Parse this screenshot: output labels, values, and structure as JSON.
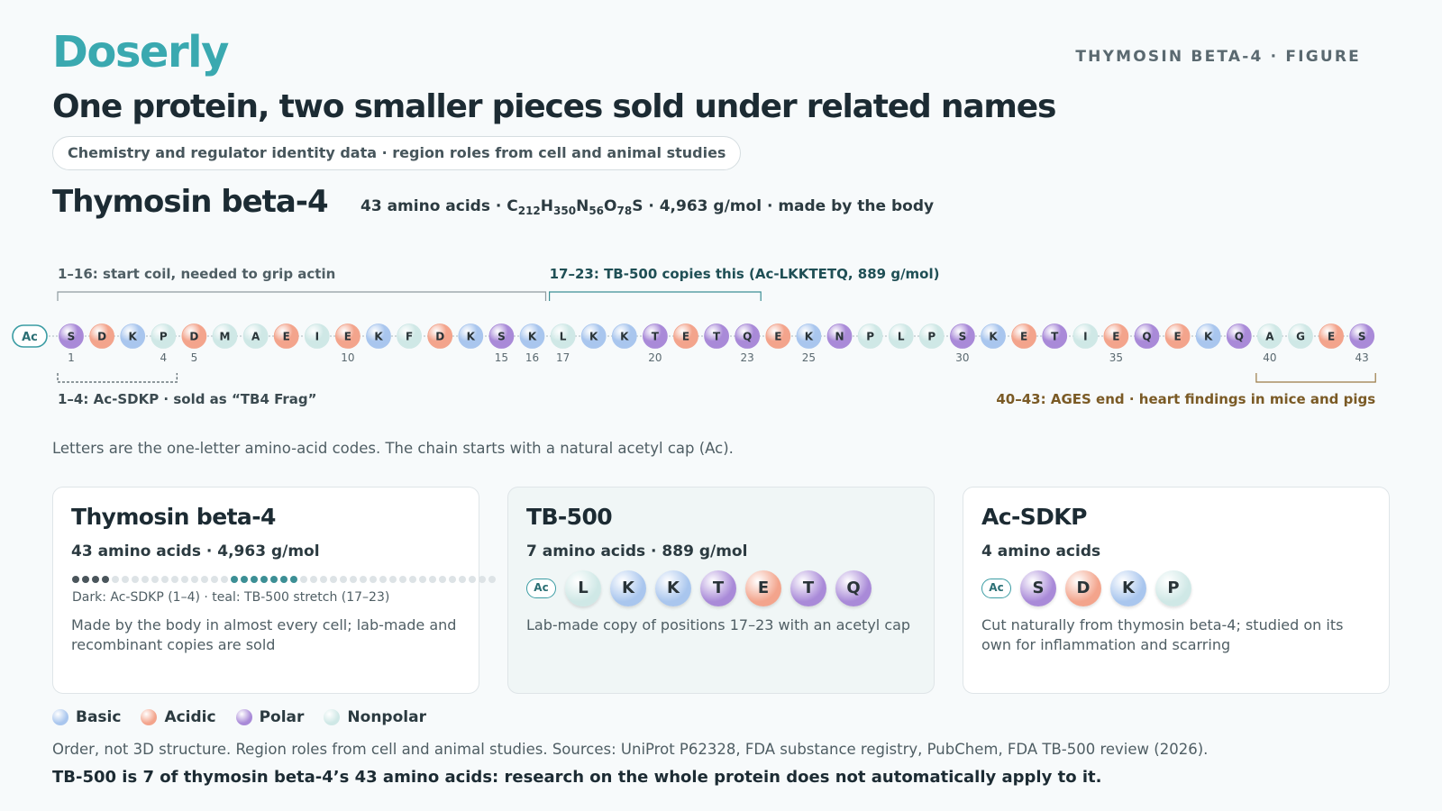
{
  "brand": "Doserly",
  "figure_tag": "THYMOSIN BETA-4 · FIGURE",
  "title": "One protein, two smaller pieces sold under related names",
  "subtitle_pill": "Chemistry and regulator identity data · region roles from cell and animal studies",
  "protein": {
    "name": "Thymosin beta-4",
    "meta_prefix": "43 amino acids · C",
    "formula": [
      {
        "el": "C",
        "n": "212"
      },
      {
        "el": "H",
        "n": "350"
      },
      {
        "el": "N",
        "n": "56"
      },
      {
        "el": "O",
        "n": "78"
      },
      {
        "el": "S",
        "n": ""
      }
    ],
    "meta_suffix": " · 4,963 g/mol · made by the body"
  },
  "colors": {
    "basic": "#a9c6ee",
    "acidic": "#f3a48c",
    "polar": "#a98ad8",
    "nonpolar": "#cfe8e6"
  },
  "chain": {
    "cap_label": "Ac",
    "residues": [
      {
        "c": "S",
        "t": "polar"
      },
      {
        "c": "D",
        "t": "acidic"
      },
      {
        "c": "K",
        "t": "basic"
      },
      {
        "c": "P",
        "t": "nonpolar"
      },
      {
        "c": "D",
        "t": "acidic"
      },
      {
        "c": "M",
        "t": "nonpolar"
      },
      {
        "c": "A",
        "t": "nonpolar"
      },
      {
        "c": "E",
        "t": "acidic"
      },
      {
        "c": "I",
        "t": "nonpolar"
      },
      {
        "c": "E",
        "t": "acidic"
      },
      {
        "c": "K",
        "t": "basic"
      },
      {
        "c": "F",
        "t": "nonpolar"
      },
      {
        "c": "D",
        "t": "acidic"
      },
      {
        "c": "K",
        "t": "basic"
      },
      {
        "c": "S",
        "t": "polar"
      },
      {
        "c": "K",
        "t": "basic"
      },
      {
        "c": "L",
        "t": "nonpolar"
      },
      {
        "c": "K",
        "t": "basic"
      },
      {
        "c": "K",
        "t": "basic"
      },
      {
        "c": "T",
        "t": "polar"
      },
      {
        "c": "E",
        "t": "acidic"
      },
      {
        "c": "T",
        "t": "polar"
      },
      {
        "c": "Q",
        "t": "polar"
      },
      {
        "c": "E",
        "t": "acidic"
      },
      {
        "c": "K",
        "t": "basic"
      },
      {
        "c": "N",
        "t": "polar"
      },
      {
        "c": "P",
        "t": "nonpolar"
      },
      {
        "c": "L",
        "t": "nonpolar"
      },
      {
        "c": "P",
        "t": "nonpolar"
      },
      {
        "c": "S",
        "t": "polar"
      },
      {
        "c": "K",
        "t": "basic"
      },
      {
        "c": "E",
        "t": "acidic"
      },
      {
        "c": "T",
        "t": "polar"
      },
      {
        "c": "I",
        "t": "nonpolar"
      },
      {
        "c": "E",
        "t": "acidic"
      },
      {
        "c": "Q",
        "t": "polar"
      },
      {
        "c": "E",
        "t": "acidic"
      },
      {
        "c": "K",
        "t": "basic"
      },
      {
        "c": "Q",
        "t": "polar"
      },
      {
        "c": "A",
        "t": "nonpolar"
      },
      {
        "c": "G",
        "t": "nonpolar"
      },
      {
        "c": "E",
        "t": "acidic"
      },
      {
        "c": "S",
        "t": "polar"
      }
    ],
    "position_labels": [
      1,
      4,
      5,
      10,
      15,
      16,
      17,
      20,
      23,
      25,
      30,
      35,
      40,
      43
    ],
    "regions": [
      {
        "label": "1–16: start coil, needed to grip actin",
        "start": 1,
        "end": 16,
        "side": "above",
        "style": "solid",
        "color": "#8f9ba0",
        "text_color": "#4f5e64"
      },
      {
        "label": "17–23: TB-500 copies this (Ac-LKKTETQ, 889 g/mol)",
        "start": 17,
        "end": 23,
        "side": "above",
        "style": "solid",
        "color": "#3c8f95",
        "text_color": "#1f4f55"
      },
      {
        "label": "1–4: Ac-SDKP · sold as “TB4 Frag”",
        "start": 1,
        "end": 4,
        "side": "below",
        "style": "dashed",
        "color": "#4f5e64",
        "text_color": "#3b4a50"
      },
      {
        "label": "40–43: AGES end · heart findings in mice and pigs",
        "start": 40,
        "end": 43,
        "side": "below",
        "style": "solid",
        "color": "#9a7a45",
        "text_color": "#7a5a25"
      }
    ]
  },
  "chain_note": "Letters are the one-letter amino-acid codes. The chain starts with a natural acetyl cap (Ac).",
  "cards": [
    {
      "title": "Thymosin beta-4",
      "sub": "43 amino acids · 4,963 g/mol",
      "caption": "Dark: Ac-SDKP (1–4) · teal: TB-500 stretch (17–23)",
      "desc": "Made by the body in almost every cell; lab-made and recombinant copies are sold"
    },
    {
      "title": "TB-500",
      "sub": "7 amino acids · 889 g/mol",
      "cap": "Ac",
      "residues": [
        {
          "c": "L",
          "t": "nonpolar"
        },
        {
          "c": "K",
          "t": "basic"
        },
        {
          "c": "K",
          "t": "basic"
        },
        {
          "c": "T",
          "t": "polar"
        },
        {
          "c": "E",
          "t": "acidic"
        },
        {
          "c": "T",
          "t": "polar"
        },
        {
          "c": "Q",
          "t": "polar"
        }
      ],
      "desc": "Lab-made copy of positions 17–23 with an acetyl cap"
    },
    {
      "title": "Ac-SDKP",
      "sub": "4 amino acids",
      "cap": "Ac",
      "residues": [
        {
          "c": "S",
          "t": "polar"
        },
        {
          "c": "D",
          "t": "acidic"
        },
        {
          "c": "K",
          "t": "basic"
        },
        {
          "c": "P",
          "t": "nonpolar"
        }
      ],
      "desc": "Cut naturally from thymosin beta-4; studied on its own for inflammation and scarring"
    }
  ],
  "legend": [
    {
      "label": "Basic",
      "t": "basic"
    },
    {
      "label": "Acidic",
      "t": "acidic"
    },
    {
      "label": "Polar",
      "t": "polar"
    },
    {
      "label": "Nonpolar",
      "t": "nonpolar"
    }
  ],
  "sources": "Order, not 3D structure. Region roles from cell and animal studies. Sources: UniProt P62328, FDA substance registry, PubChem, FDA TB-500 review (2026).",
  "takeaway": "TB-500 is 7 of thymosin beta-4’s 43 amino acids: research on the whole protein does not automatically apply to it."
}
